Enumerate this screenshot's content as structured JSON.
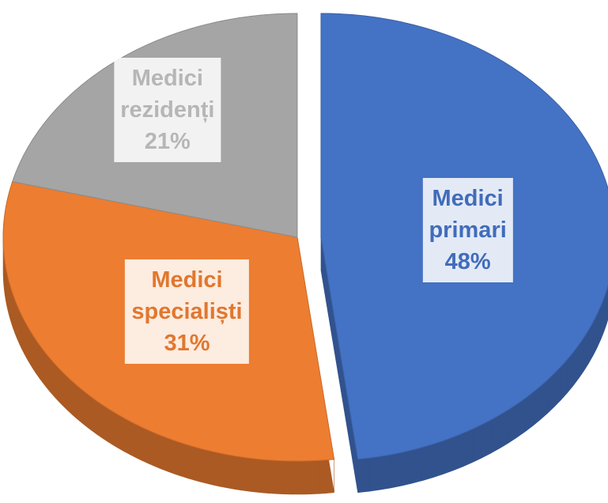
{
  "chart_data": {
    "type": "pie",
    "categories": [
      "Medici primari",
      "Medici specialiști",
      "Medici rezidenți"
    ],
    "values": [
      48,
      31,
      21
    ],
    "value_labels": [
      "48%",
      "31%",
      "21%"
    ],
    "colors": [
      "#4472c4",
      "#ed7d31",
      "#a5a5a5"
    ]
  }
}
